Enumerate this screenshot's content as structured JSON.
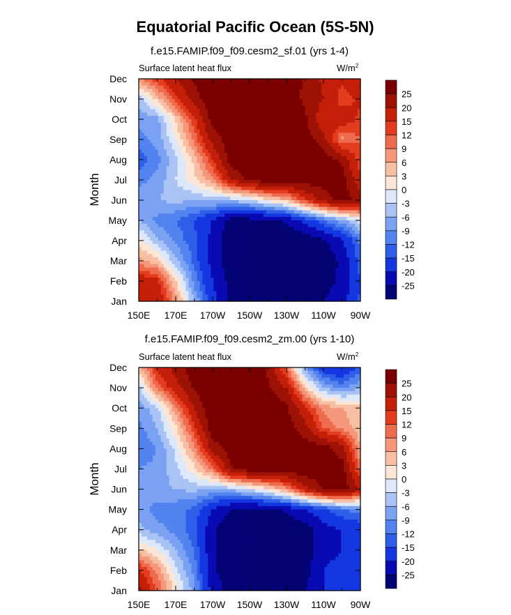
{
  "figure_title": "Equatorial Pacific Ocean (5S-5N)",
  "chart_data": [
    {
      "type": "heatmap",
      "title": "f.e15.FAMIP.f09_f09.cesm2_sf.01 (yrs 1-4)",
      "subtitle_left": "Surface latent heat flux",
      "units": "W/m",
      "units_superscript": "2",
      "xlabel": "",
      "ylabel": "Month",
      "x_ticks": [
        "150E",
        "170E",
        "170W",
        "150W",
        "130W",
        "110W",
        "90W"
      ],
      "y_ticks": [
        "Jan",
        "Feb",
        "Mar",
        "Apr",
        "May",
        "Jun",
        "Jul",
        "Aug",
        "Sep",
        "Oct",
        "Nov",
        "Dec"
      ],
      "xlim": [
        150,
        270
      ],
      "ylim": [
        0,
        11
      ],
      "contour_levels": [
        -25,
        -20,
        -15,
        -12,
        -9,
        -6,
        -3,
        0,
        3,
        6,
        9,
        12,
        15,
        20,
        25
      ],
      "colorbar_labels": [
        "25",
        "20",
        "15",
        "12",
        "9",
        "6",
        "3",
        "0",
        "-3",
        "-6",
        "-9",
        "-12",
        "-15",
        "-20",
        "-25"
      ],
      "field": {
        "lon": [
          150,
          160,
          170,
          180,
          190,
          200,
          210,
          220,
          230,
          240,
          250,
          260,
          270
        ],
        "month_index": [
          0,
          1,
          2,
          3,
          4,
          5,
          6,
          7,
          8,
          9,
          10,
          11
        ],
        "values": [
          [
            20,
            19,
            8,
            -6,
            -18,
            -26,
            -28,
            -29,
            -28,
            -27,
            -25,
            -22,
            -14
          ],
          [
            19,
            16,
            3,
            -10,
            -20,
            -27,
            -29,
            -30,
            -29,
            -28,
            -27,
            -24,
            -15
          ],
          [
            7,
            4,
            -5,
            -13,
            -22,
            -28,
            -30,
            -30,
            -30,
            -29,
            -28,
            -24,
            -13
          ],
          [
            2,
            -5,
            -10,
            -14,
            -22,
            -29,
            -30,
            -30,
            -30,
            -29,
            -26,
            -21,
            -11
          ],
          [
            -6,
            -10,
            -12,
            -15,
            -20,
            -27,
            -27,
            -27,
            -24,
            -18,
            -12,
            -7,
            -1
          ],
          [
            -7,
            -6,
            -5,
            -6,
            -5,
            -5,
            -3,
            2,
            5,
            14,
            22,
            27,
            24
          ],
          [
            -10,
            -8,
            -3,
            2,
            8,
            20,
            26,
            28,
            28,
            28,
            28,
            28,
            16
          ],
          [
            -14,
            -10,
            -4,
            4,
            15,
            28,
            30,
            30,
            30,
            29,
            28,
            24,
            12
          ],
          [
            -10,
            -8,
            0,
            10,
            22,
            28,
            30,
            30,
            30,
            28,
            22,
            8,
            12
          ],
          [
            -8,
            -7,
            3,
            14,
            27,
            30,
            30,
            29,
            28,
            26,
            16,
            18,
            14
          ],
          [
            -5,
            4,
            14,
            22,
            30,
            30,
            30,
            30,
            28,
            24,
            20,
            13,
            16
          ],
          [
            8,
            14,
            20,
            26,
            30,
            30,
            30,
            30,
            29,
            24,
            19,
            16,
            18
          ]
        ]
      }
    },
    {
      "type": "heatmap",
      "title": "f.e15.FAMIP.f09_f09.cesm2_zm.00 (yrs 1-10)",
      "subtitle_left": "Surface latent heat flux",
      "units": "W/m",
      "units_superscript": "2",
      "xlabel": "",
      "ylabel": "Month",
      "x_ticks": [
        "150E",
        "170E",
        "170W",
        "150W",
        "130W",
        "110W",
        "90W"
      ],
      "y_ticks": [
        "Jan",
        "Feb",
        "Mar",
        "Apr",
        "May",
        "Jun",
        "Jul",
        "Aug",
        "Sep",
        "Oct",
        "Nov",
        "Dec"
      ],
      "xlim": [
        150,
        270
      ],
      "ylim": [
        0,
        11
      ],
      "contour_levels": [
        -25,
        -20,
        -15,
        -12,
        -9,
        -6,
        -3,
        0,
        3,
        6,
        9,
        12,
        15,
        20,
        25
      ],
      "colorbar_labels": [
        "25",
        "20",
        "15",
        "12",
        "9",
        "6",
        "3",
        "0",
        "-3",
        "-6",
        "-9",
        "-12",
        "-15",
        "-20",
        "-25"
      ],
      "field": {
        "lon": [
          150,
          160,
          170,
          180,
          190,
          200,
          210,
          220,
          230,
          240,
          250,
          260,
          270
        ],
        "month_index": [
          0,
          1,
          2,
          3,
          4,
          5,
          6,
          7,
          8,
          9,
          10,
          11
        ],
        "values": [
          [
            22,
            12,
            2,
            -8,
            -22,
            -27,
            -28,
            -28,
            -27,
            -25,
            -20,
            -18,
            -18
          ],
          [
            16,
            8,
            -2,
            -10,
            -24,
            -29,
            -29,
            -29,
            -28,
            -27,
            -20,
            -18,
            -18
          ],
          [
            4,
            0,
            -6,
            -12,
            -24,
            -30,
            -30,
            -30,
            -30,
            -28,
            -22,
            -20,
            -19
          ],
          [
            -5,
            -8,
            -10,
            -14,
            -24,
            -30,
            -30,
            -30,
            -30,
            -28,
            -22,
            -20,
            -18
          ],
          [
            -8,
            -10,
            -11,
            -13,
            -20,
            -25,
            -27,
            -26,
            -24,
            -20,
            -16,
            -12,
            -10
          ],
          [
            -8,
            -7,
            -6,
            -5,
            -6,
            -5,
            -2,
            2,
            8,
            18,
            26,
            28,
            20
          ],
          [
            -9,
            -8,
            -4,
            2,
            10,
            24,
            28,
            28,
            28,
            29,
            28,
            28,
            10
          ],
          [
            -12,
            -9,
            -2,
            8,
            22,
            28,
            30,
            30,
            30,
            28,
            28,
            22,
            6
          ],
          [
            -10,
            -6,
            2,
            14,
            28,
            30,
            30,
            30,
            28,
            22,
            12,
            8,
            4
          ],
          [
            -8,
            -4,
            8,
            20,
            30,
            30,
            30,
            30,
            26,
            16,
            8,
            6,
            4
          ],
          [
            -4,
            10,
            18,
            26,
            30,
            30,
            30,
            26,
            20,
            4,
            -6,
            -10,
            -6
          ],
          [
            5,
            16,
            22,
            28,
            30,
            30,
            30,
            24,
            10,
            -8,
            -18,
            -20,
            -14
          ]
        ]
      }
    }
  ],
  "colors": {
    "level_fills": [
      "#030374",
      "#0a0ab2",
      "#1437e1",
      "#2f5fe8",
      "#5283ef",
      "#7ba2f2",
      "#a9c3f5",
      "#dde8fa",
      "#fde6d6",
      "#f7c0a4",
      "#f4977a",
      "#ef6b4e",
      "#e43c1f",
      "#c41f08",
      "#9d1204",
      "#7a0000"
    ]
  }
}
